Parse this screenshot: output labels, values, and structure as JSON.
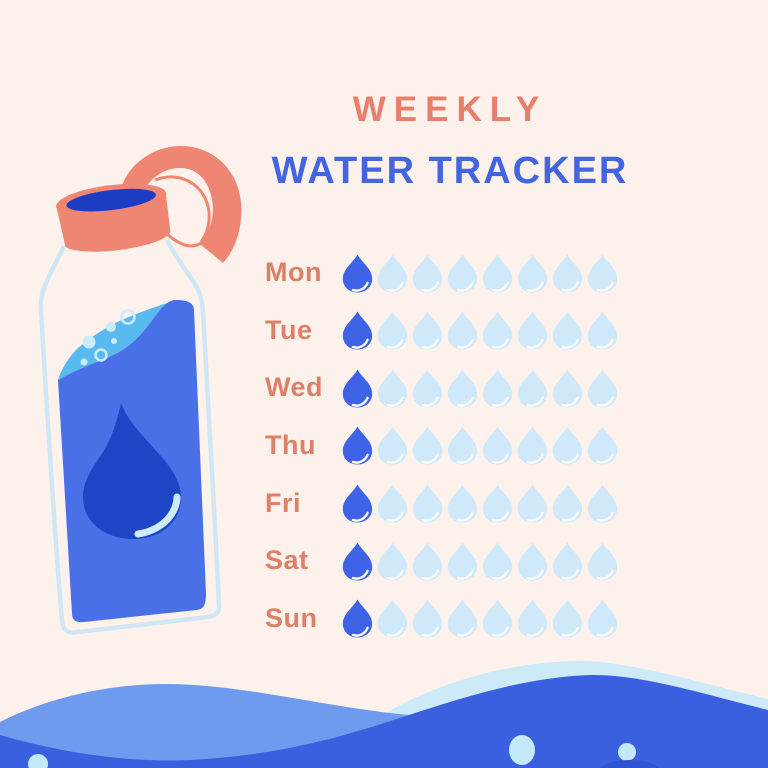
{
  "poster": {
    "title_line1": "WEEKLY",
    "title_line2": "WATER TRACKER"
  },
  "tracker": {
    "days": [
      {
        "label": "Mon",
        "filled": 1,
        "total": 8
      },
      {
        "label": "Tue",
        "filled": 1,
        "total": 8
      },
      {
        "label": "Wed",
        "filled": 1,
        "total": 8
      },
      {
        "label": "Thu",
        "filled": 1,
        "total": 8
      },
      {
        "label": "Fri",
        "filled": 1,
        "total": 8
      },
      {
        "label": "Sat",
        "filled": 1,
        "total": 8
      },
      {
        "label": "Sun",
        "filled": 1,
        "total": 8
      }
    ]
  },
  "icons": {
    "drop_filled": "water-drop-icon-filled",
    "drop_empty": "water-drop-icon-empty"
  },
  "illustrations": {
    "left": "water-bottle-with-open-coral-cap",
    "bottom": "double-wave-water-footer-with-bubbles"
  },
  "colors": {
    "background": "#FDF2EB",
    "title_accent": "#E87E6B",
    "title_primary": "#4365E2",
    "day_label": "#DD8068",
    "drop_filled": "#3E63E6",
    "drop_empty": "#CFE9FA",
    "coral": "#EE8673",
    "water_blue": "#4A70E8",
    "water_cyan": "#58BAEE",
    "water_dark": "#1E45C5",
    "mouth_dark": "#1C3CC2",
    "outline_blue": "#CFE7F5",
    "bubble_pale": "#C9ECFA",
    "wave_back": "#6F9BEE",
    "wave_front": "#3A60E0",
    "wave_band": "#CDEAF8",
    "wave_bubble": "#C5E9FA",
    "wave_dark": "#2E54D0"
  }
}
